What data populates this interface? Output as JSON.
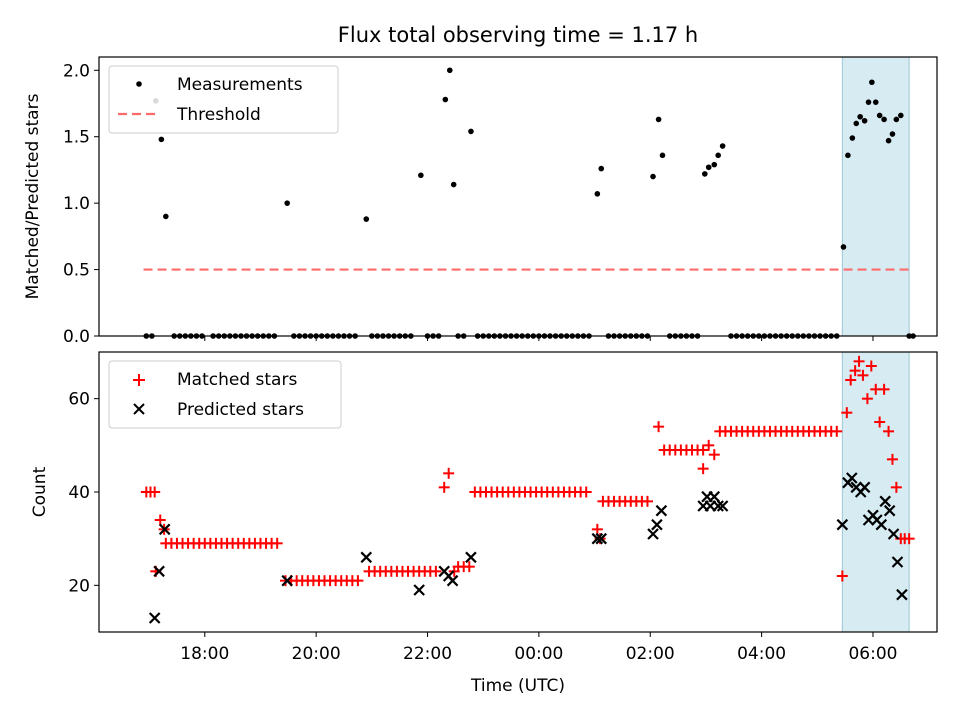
{
  "figure_title": "Flux total observing time = 1.17 h",
  "colors": {
    "measurement": "#000000",
    "threshold": "#ff6b6b",
    "matched": "#ff0000",
    "predicted": "#000000",
    "highlight": "#add8e6"
  },
  "chart_data": [
    {
      "type": "scatter",
      "panel": "top",
      "ylabel": "Matched/Predicted stars",
      "xlim_hours": [
        16.1,
        31.15
      ],
      "ylim": [
        0,
        2.1
      ],
      "yticks": [
        0.0,
        0.5,
        1.0,
        1.5,
        2.0
      ],
      "ytick_labels": [
        "0.0",
        "0.5",
        "1.0",
        "1.5",
        "2.0"
      ],
      "legend": {
        "position": "upper-left",
        "entries": [
          "Measurements",
          "Threshold"
        ]
      },
      "threshold": {
        "name": "Threshold",
        "value": 0.5,
        "x_start": 16.9,
        "x_end": 30.7
      },
      "highlight_span_hours": [
        29.45,
        30.65
      ],
      "series": [
        {
          "name": "Measurements",
          "points": [
            [
              16.95,
              0
            ],
            [
              17.05,
              0
            ],
            [
              17.12,
              1.77
            ],
            [
              17.22,
              1.48
            ],
            [
              17.3,
              0.9
            ],
            [
              17.45,
              0
            ],
            [
              17.55,
              0
            ],
            [
              17.65,
              0
            ],
            [
              17.75,
              0
            ],
            [
              17.85,
              0
            ],
            [
              17.95,
              0
            ],
            [
              18.15,
              0
            ],
            [
              18.25,
              0
            ],
            [
              18.35,
              0
            ],
            [
              18.45,
              0
            ],
            [
              18.55,
              0
            ],
            [
              18.65,
              0
            ],
            [
              18.75,
              0
            ],
            [
              18.85,
              0
            ],
            [
              18.95,
              0
            ],
            [
              19.05,
              0
            ],
            [
              19.15,
              0
            ],
            [
              19.25,
              0
            ],
            [
              19.48,
              1.0
            ],
            [
              19.6,
              0
            ],
            [
              19.7,
              0
            ],
            [
              19.8,
              0
            ],
            [
              19.9,
              0
            ],
            [
              20.0,
              0
            ],
            [
              20.1,
              0
            ],
            [
              20.2,
              0
            ],
            [
              20.3,
              0
            ],
            [
              20.4,
              0
            ],
            [
              20.5,
              0
            ],
            [
              20.6,
              0
            ],
            [
              20.7,
              0
            ],
            [
              20.9,
              0.88
            ],
            [
              21.0,
              0
            ],
            [
              21.1,
              0
            ],
            [
              21.2,
              0
            ],
            [
              21.3,
              0
            ],
            [
              21.4,
              0
            ],
            [
              21.5,
              0
            ],
            [
              21.6,
              0
            ],
            [
              21.7,
              0
            ],
            [
              21.88,
              1.21
            ],
            [
              22.0,
              0
            ],
            [
              22.1,
              0
            ],
            [
              22.2,
              0
            ],
            [
              22.32,
              1.78
            ],
            [
              22.4,
              2.0
            ],
            [
              22.47,
              1.14
            ],
            [
              22.55,
              0
            ],
            [
              22.65,
              0
            ],
            [
              22.78,
              1.54
            ],
            [
              22.9,
              0
            ],
            [
              23.0,
              0
            ],
            [
              23.1,
              0
            ],
            [
              23.2,
              0
            ],
            [
              23.3,
              0
            ],
            [
              23.4,
              0
            ],
            [
              23.5,
              0
            ],
            [
              23.6,
              0
            ],
            [
              23.7,
              0
            ],
            [
              23.8,
              0
            ],
            [
              23.9,
              0
            ],
            [
              24.0,
              0
            ],
            [
              24.1,
              0
            ],
            [
              24.2,
              0
            ],
            [
              24.3,
              0
            ],
            [
              24.4,
              0
            ],
            [
              24.5,
              0
            ],
            [
              24.6,
              0
            ],
            [
              24.7,
              0
            ],
            [
              24.8,
              0
            ],
            [
              24.9,
              0
            ],
            [
              25.05,
              1.07
            ],
            [
              25.12,
              1.26
            ],
            [
              25.25,
              0
            ],
            [
              25.35,
              0
            ],
            [
              25.45,
              0
            ],
            [
              25.55,
              0
            ],
            [
              25.65,
              0
            ],
            [
              25.75,
              0
            ],
            [
              25.85,
              0
            ],
            [
              25.95,
              0
            ],
            [
              26.05,
              1.2
            ],
            [
              26.15,
              1.63
            ],
            [
              26.22,
              1.36
            ],
            [
              26.35,
              0
            ],
            [
              26.45,
              0
            ],
            [
              26.55,
              0
            ],
            [
              26.65,
              0
            ],
            [
              26.75,
              0
            ],
            [
              26.85,
              0
            ],
            [
              26.98,
              1.22
            ],
            [
              27.05,
              1.27
            ],
            [
              27.15,
              1.29
            ],
            [
              27.22,
              1.36
            ],
            [
              27.3,
              1.43
            ],
            [
              27.45,
              0
            ],
            [
              27.55,
              0
            ],
            [
              27.65,
              0
            ],
            [
              27.75,
              0
            ],
            [
              27.85,
              0
            ],
            [
              27.95,
              0
            ],
            [
              28.05,
              0
            ],
            [
              28.15,
              0
            ],
            [
              28.25,
              0
            ],
            [
              28.35,
              0
            ],
            [
              28.45,
              0
            ],
            [
              28.55,
              0
            ],
            [
              28.65,
              0
            ],
            [
              28.75,
              0
            ],
            [
              28.85,
              0
            ],
            [
              28.95,
              0
            ],
            [
              29.05,
              0
            ],
            [
              29.15,
              0
            ],
            [
              29.25,
              0
            ],
            [
              29.35,
              0
            ],
            [
              29.47,
              0.67
            ],
            [
              29.55,
              1.36
            ],
            [
              29.63,
              1.49
            ],
            [
              29.7,
              1.6
            ],
            [
              29.77,
              1.65
            ],
            [
              29.85,
              1.62
            ],
            [
              29.92,
              1.76
            ],
            [
              29.98,
              1.91
            ],
            [
              30.05,
              1.76
            ],
            [
              30.12,
              1.66
            ],
            [
              30.2,
              1.63
            ],
            [
              30.28,
              1.47
            ],
            [
              30.35,
              1.52
            ],
            [
              30.42,
              1.63
            ],
            [
              30.5,
              1.66
            ],
            [
              30.65,
              0
            ],
            [
              30.72,
              0
            ]
          ]
        }
      ]
    },
    {
      "type": "scatter",
      "panel": "bottom",
      "ylabel": "Count",
      "xlabel": "Time (UTC)",
      "xlim_hours": [
        16.1,
        31.15
      ],
      "ylim": [
        10,
        70
      ],
      "yticks": [
        20,
        40,
        60
      ],
      "ytick_labels": [
        "20",
        "40",
        "60"
      ],
      "xticks_hours": [
        18,
        20,
        22,
        24,
        26,
        28,
        30
      ],
      "xtick_labels": [
        "18:00",
        "20:00",
        "22:00",
        "00:00",
        "02:00",
        "04:00",
        "06:00"
      ],
      "legend": {
        "position": "upper-left",
        "entries": [
          "Matched stars",
          "Predicted stars"
        ]
      },
      "highlight_span_hours": [
        29.45,
        30.65
      ],
      "series": [
        {
          "name": "Matched stars",
          "marker": "plus",
          "runs": [
            {
              "start": 16.95,
              "end": 17.1,
              "step": 0.075,
              "value": 40
            },
            {
              "start": 17.3,
              "end": 19.3,
              "step": 0.1,
              "value": 29
            },
            {
              "start": 19.55,
              "end": 20.75,
              "step": 0.1,
              "value": 21
            },
            {
              "start": 20.95,
              "end": 22.15,
              "step": 0.1,
              "value": 23
            },
            {
              "start": 22.55,
              "end": 22.75,
              "step": 0.1,
              "value": 24
            },
            {
              "start": 22.85,
              "end": 24.85,
              "step": 0.1,
              "value": 40
            },
            {
              "start": 25.15,
              "end": 25.95,
              "step": 0.1,
              "value": 38
            },
            {
              "start": 26.25,
              "end": 26.95,
              "step": 0.1,
              "value": 49
            },
            {
              "start": 27.25,
              "end": 29.35,
              "step": 0.1,
              "value": 53
            }
          ],
          "points": [
            [
              17.12,
              23
            ],
            [
              17.2,
              34
            ],
            [
              17.27,
              32
            ],
            [
              19.45,
              21
            ],
            [
              22.3,
              41
            ],
            [
              22.38,
              44
            ],
            [
              22.48,
              23
            ],
            [
              25.05,
              32
            ],
            [
              25.1,
              30
            ],
            [
              26.15,
              54
            ],
            [
              26.95,
              45
            ],
            [
              27.05,
              50
            ],
            [
              27.15,
              48
            ],
            [
              29.45,
              22
            ],
            [
              29.53,
              57
            ],
            [
              29.6,
              64
            ],
            [
              29.68,
              66
            ],
            [
              29.75,
              68
            ],
            [
              29.82,
              65
            ],
            [
              29.9,
              60
            ],
            [
              29.97,
              67
            ],
            [
              30.05,
              62
            ],
            [
              30.12,
              55
            ],
            [
              30.2,
              62
            ],
            [
              30.28,
              53
            ],
            [
              30.35,
              47
            ],
            [
              30.42,
              41
            ],
            [
              30.5,
              30
            ],
            [
              30.57,
              30
            ],
            [
              30.65,
              30
            ]
          ]
        },
        {
          "name": "Predicted stars",
          "marker": "x",
          "points": [
            [
              17.1,
              13
            ],
            [
              17.18,
              23
            ],
            [
              17.28,
              32
            ],
            [
              19.48,
              21
            ],
            [
              20.9,
              26
            ],
            [
              21.85,
              19
            ],
            [
              22.3,
              23
            ],
            [
              22.38,
              22
            ],
            [
              22.45,
              21
            ],
            [
              22.78,
              26
            ],
            [
              25.05,
              30
            ],
            [
              25.12,
              30
            ],
            [
              26.05,
              31
            ],
            [
              26.12,
              33
            ],
            [
              26.2,
              36
            ],
            [
              26.95,
              37
            ],
            [
              27.02,
              39
            ],
            [
              27.08,
              37
            ],
            [
              27.15,
              39
            ],
            [
              27.22,
              37
            ],
            [
              27.3,
              37
            ],
            [
              29.45,
              33
            ],
            [
              29.55,
              42
            ],
            [
              29.62,
              43
            ],
            [
              29.7,
              41
            ],
            [
              29.78,
              40
            ],
            [
              29.85,
              41
            ],
            [
              29.92,
              34
            ],
            [
              30.0,
              35
            ],
            [
              30.07,
              34
            ],
            [
              30.15,
              33
            ],
            [
              30.22,
              38
            ],
            [
              30.3,
              36
            ],
            [
              30.37,
              31
            ],
            [
              30.44,
              25
            ],
            [
              30.52,
              18
            ]
          ]
        }
      ]
    }
  ]
}
